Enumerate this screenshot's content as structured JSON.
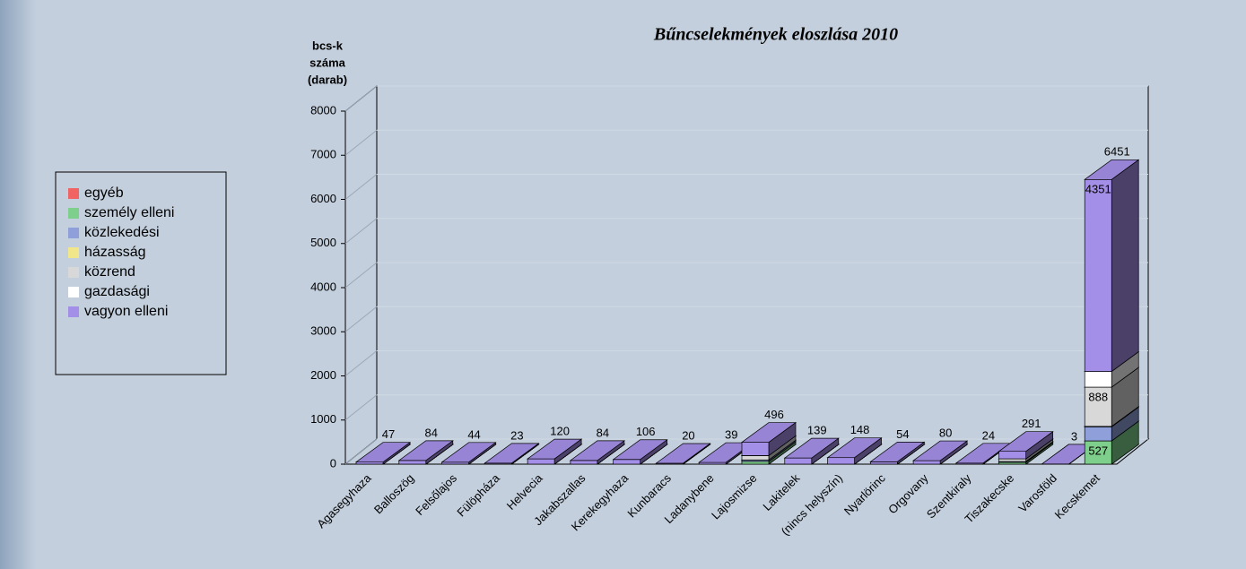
{
  "chart_data": {
    "type": "bar3d_stacked",
    "title": "Bűncselekmények eloszlása 2010",
    "ylabel": [
      "bcs-k",
      "száma",
      "(darab)"
    ],
    "categories": [
      "Agasegyhaza",
      "Balloszög",
      "Felsőlajos",
      "Fülöpháza",
      "Helvecia",
      "Jakabszallas",
      "Kerekegyhaza",
      "Kunbaracs",
      "Ladanybene",
      "Lajosmizse",
      "Lakitelek",
      "(nincs helyszín)",
      "Nyarlörinc",
      "Orgovany",
      "Szentkiraly",
      "Tiszakecske",
      "Varosföld",
      "Kecskemet"
    ],
    "series": [
      {
        "name": "egyéb",
        "color": "#f06464",
        "values": [
          0,
          0,
          0,
          0,
          0,
          0,
          0,
          0,
          0,
          0,
          0,
          0,
          0,
          0,
          0,
          0,
          0,
          0
        ]
      },
      {
        "name": "személy elleni",
        "color": "#7fcf8c",
        "values": [
          0,
          0,
          0,
          0,
          0,
          0,
          0,
          0,
          0,
          60,
          0,
          0,
          0,
          0,
          0,
          40,
          0,
          527
        ]
      },
      {
        "name": "közlekedési",
        "color": "#8e9fd9",
        "values": [
          0,
          0,
          0,
          0,
          0,
          0,
          0,
          0,
          0,
          36,
          0,
          0,
          0,
          0,
          0,
          21,
          0,
          320
        ]
      },
      {
        "name": "házasság",
        "color": "#f2e68a",
        "values": [
          0,
          0,
          0,
          0,
          0,
          0,
          0,
          0,
          0,
          0,
          0,
          0,
          0,
          0,
          0,
          0,
          0,
          10
        ]
      },
      {
        "name": "közrend",
        "color": "#d8d8d8",
        "values": [
          0,
          0,
          0,
          0,
          0,
          0,
          0,
          0,
          0,
          100,
          0,
          0,
          0,
          0,
          0,
          60,
          0,
          888
        ]
      },
      {
        "name": "gazdasági",
        "color": "#ffffff",
        "values": [
          0,
          0,
          0,
          0,
          0,
          0,
          0,
          0,
          0,
          0,
          0,
          0,
          0,
          0,
          0,
          0,
          0,
          355
        ]
      },
      {
        "name": "vagyon elleni",
        "color": "#a48fe8",
        "values": [
          47,
          84,
          44,
          23,
          120,
          84,
          106,
          20,
          39,
          300,
          139,
          148,
          54,
          80,
          24,
          170,
          3,
          4351
        ]
      }
    ],
    "totals": [
      47,
      84,
      44,
      23,
      120,
      84,
      106,
      20,
      39,
      496,
      139,
      148,
      54,
      80,
      24,
      291,
      3,
      6451
    ],
    "ylim": [
      0,
      8000
    ],
    "yticks": [
      0,
      1000,
      2000,
      3000,
      4000,
      5000,
      6000,
      7000,
      8000
    ],
    "grid": true
  }
}
